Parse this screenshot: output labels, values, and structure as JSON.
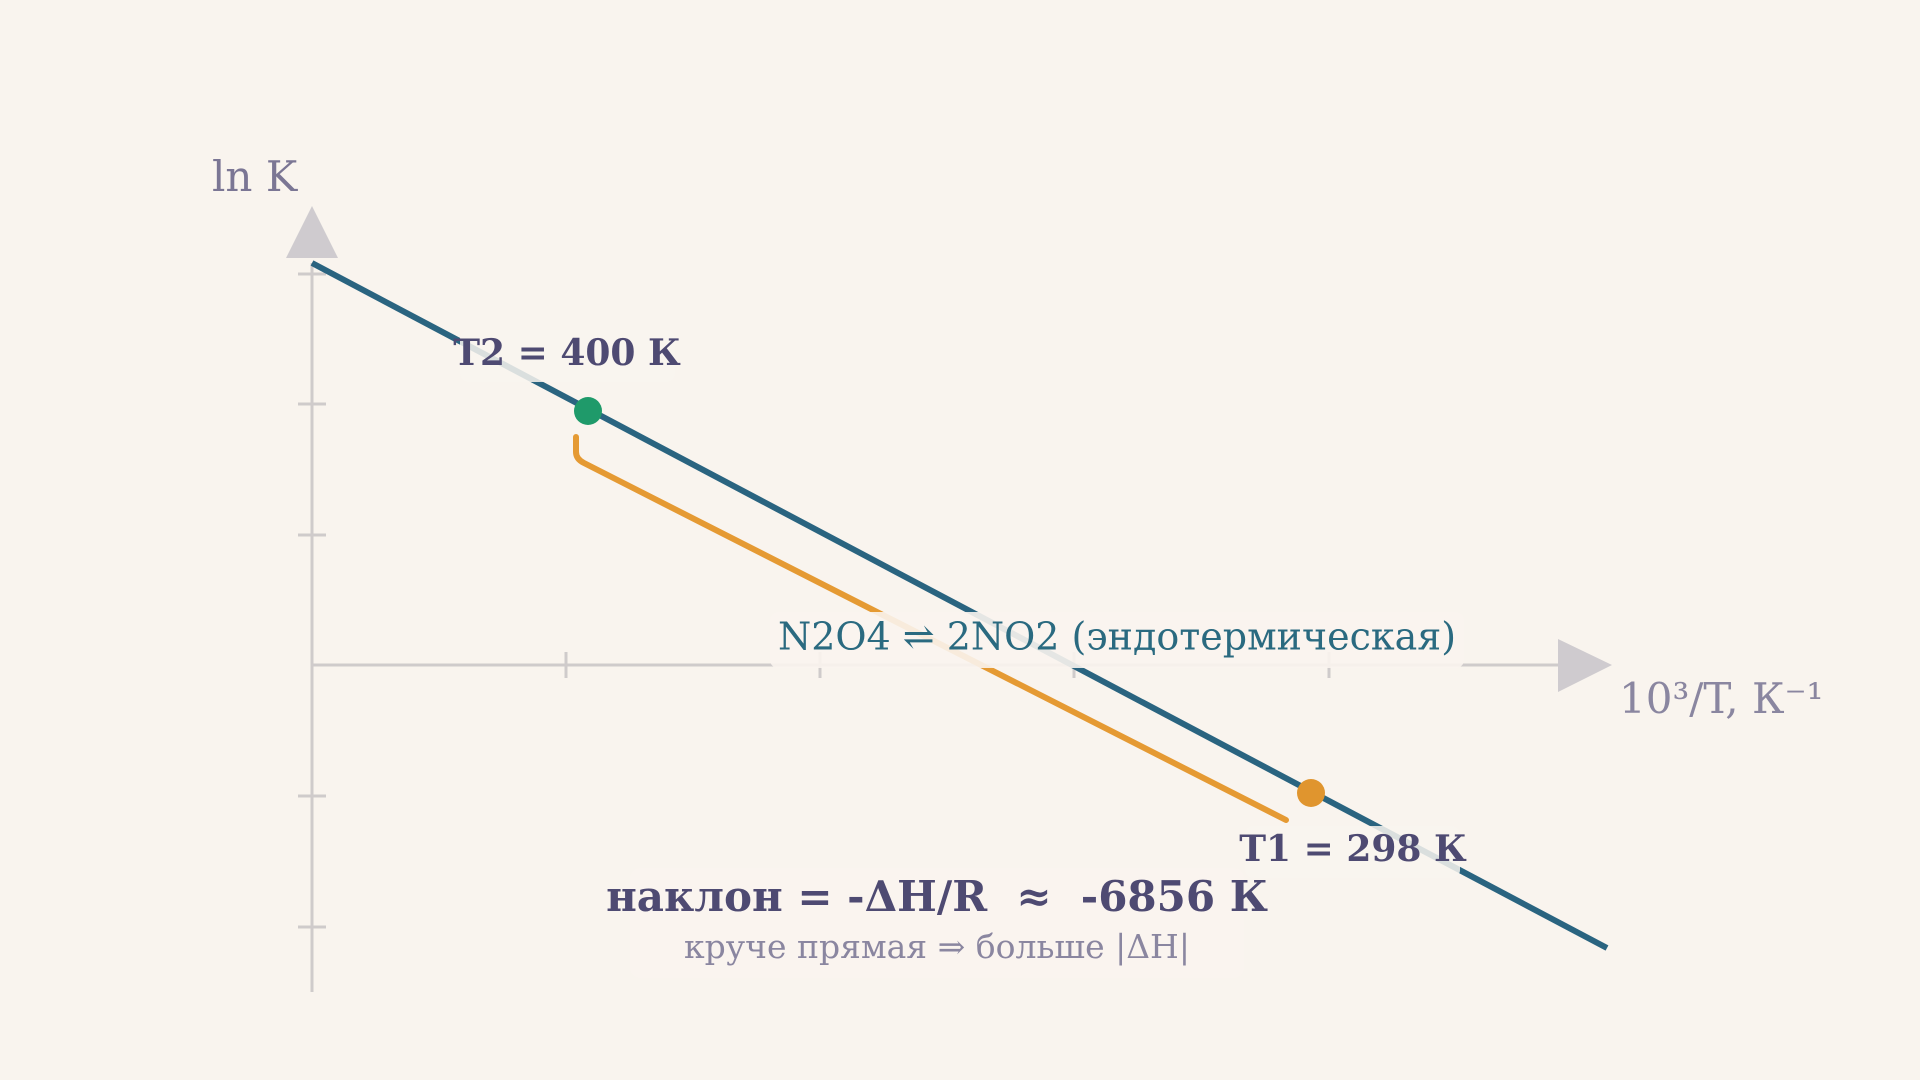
{
  "axes": {
    "y_label": "ln K",
    "x_label": "10³/T, К⁻¹"
  },
  "points": [
    {
      "label": "T2 = 400 К"
    },
    {
      "label": "T1 = 298 К"
    }
  ],
  "reaction": "N2O4 ⇌ 2NO2 (эндотермическая)",
  "slope": "наклон = -ΔH/R  ≈  -6856 К",
  "note": "круче прямая ⇒ больше |ΔH|"
}
